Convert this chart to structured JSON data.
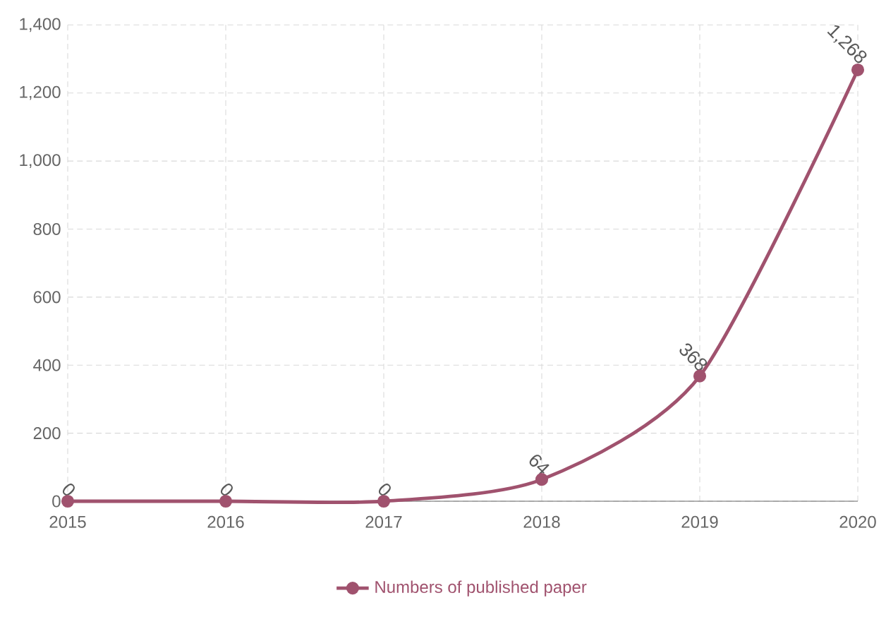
{
  "chart_data": {
    "type": "line",
    "categories": [
      "2015",
      "2016",
      "2017",
      "2018",
      "2019",
      "2020"
    ],
    "series": [
      {
        "name": "Numbers of published paper",
        "color": "#a0526e",
        "values": [
          0,
          0,
          0,
          64,
          368,
          1268
        ],
        "value_labels": [
          "0",
          "0",
          "0",
          "64",
          "368",
          "1,268"
        ]
      }
    ],
    "ylim": [
      0,
      1400
    ],
    "yticks": [
      0,
      200,
      400,
      600,
      800,
      {
        "value": 1000,
        "label": "1,000"
      },
      {
        "value": 1200,
        "label": "1,200"
      },
      {
        "value": 1400,
        "label": "1,400"
      }
    ],
    "grid": true,
    "legend": "bottom",
    "marker": "circle",
    "line_style": "solid"
  }
}
